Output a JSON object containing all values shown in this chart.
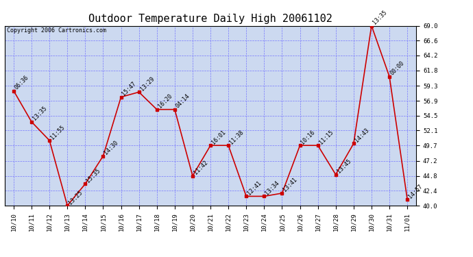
{
  "title": "Outdoor Temperature Daily High 20061102",
  "copyright": "Copyright 2006 Cartronics.com",
  "x_labels": [
    "10/10",
    "10/11",
    "10/12",
    "10/13",
    "10/14",
    "10/15",
    "10/16",
    "10/17",
    "10/18",
    "10/19",
    "10/20",
    "10/21",
    "10/22",
    "10/23",
    "10/24",
    "10/25",
    "10/26",
    "10/27",
    "10/28",
    "10/29",
    "10/30",
    "10/31",
    "11/01"
  ],
  "y_values": [
    58.5,
    53.5,
    50.5,
    40.0,
    43.5,
    48.0,
    57.5,
    58.3,
    55.5,
    55.5,
    44.8,
    49.7,
    49.7,
    41.5,
    41.5,
    42.0,
    49.7,
    49.7,
    45.0,
    50.0,
    69.0,
    60.8,
    41.0
  ],
  "time_labels": [
    "06:36",
    "13:35",
    "11:55",
    "13:25",
    "15:35",
    "14:30",
    "15:47",
    "13:29",
    "16:20",
    "04:14",
    "11:42",
    "16:01",
    "11:38",
    "12:41",
    "13:34",
    "13:41",
    "10:16",
    "11:15",
    "13:45",
    "14:43",
    "13:35",
    "00:00",
    "14:57"
  ],
  "ylim": [
    40.0,
    69.0
  ],
  "yticks": [
    40.0,
    42.4,
    44.8,
    47.2,
    49.7,
    52.1,
    54.5,
    56.9,
    59.3,
    61.8,
    64.2,
    66.6,
    69.0
  ],
  "line_color": "#cc0000",
  "marker_color": "#cc0000",
  "bg_color": "#ccd9f0",
  "grid_color": "#7777ff",
  "title_fontsize": 11,
  "label_fontsize": 6,
  "tick_fontsize": 6.5,
  "copyright_fontsize": 6
}
